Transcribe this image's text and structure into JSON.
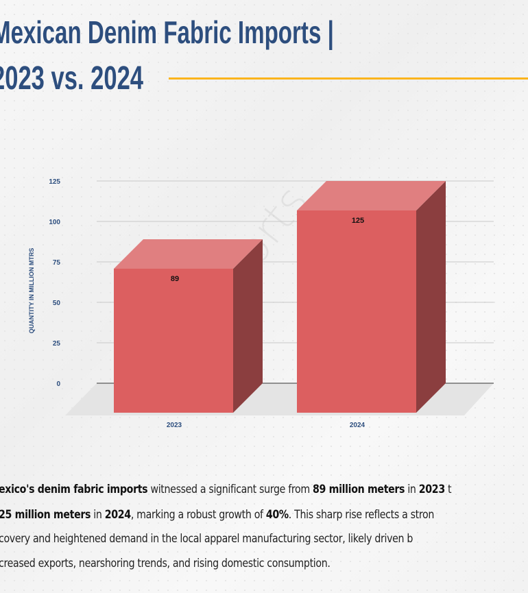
{
  "header": {
    "title_line1": "Mexican Denim Fabric Imports |",
    "title_line2": "2023 vs. 2024",
    "accent_color": "#fbb41c",
    "title_color": "#2d4e7e"
  },
  "watermark": "D&J Reports",
  "chart_data": {
    "type": "bar",
    "style": "3d",
    "categories": [
      "2023",
      "2024"
    ],
    "values": [
      89,
      125
    ],
    "data_labels": [
      "89",
      "125"
    ],
    "ylabel": "QUANTITY IN MILLION MTRS",
    "xlabel": "",
    "ylim": [
      0,
      125
    ],
    "yticks": [
      "0",
      "25",
      "50",
      "75",
      "100",
      "125"
    ],
    "grid": true,
    "bar_color": "#dc5f60"
  },
  "paragraph": {
    "lines": [
      [
        {
          "t": "exico's denim fabric imports",
          "b": true
        },
        {
          "t": " witnessed a significant surge from ",
          "b": false
        },
        {
          "t": "89 million meters",
          "b": true
        },
        {
          "t": " in ",
          "b": false
        },
        {
          "t": "2023",
          "b": true
        },
        {
          "t": " t",
          "b": false
        }
      ],
      [
        {
          "t": "25 million meters",
          "b": true
        },
        {
          "t": " in ",
          "b": false
        },
        {
          "t": "2024",
          "b": true
        },
        {
          "t": ", marking a robust growth of ",
          "b": false
        },
        {
          "t": "40%",
          "b": true
        },
        {
          "t": ". This sharp rise reflects a stron",
          "b": false
        }
      ],
      [
        {
          "t": "covery and heightened demand in the local apparel manufacturing sector, likely driven b",
          "b": false
        }
      ],
      [
        {
          "t": "creased exports, nearshoring trends, and rising domestic consumption.",
          "b": false
        }
      ]
    ]
  }
}
